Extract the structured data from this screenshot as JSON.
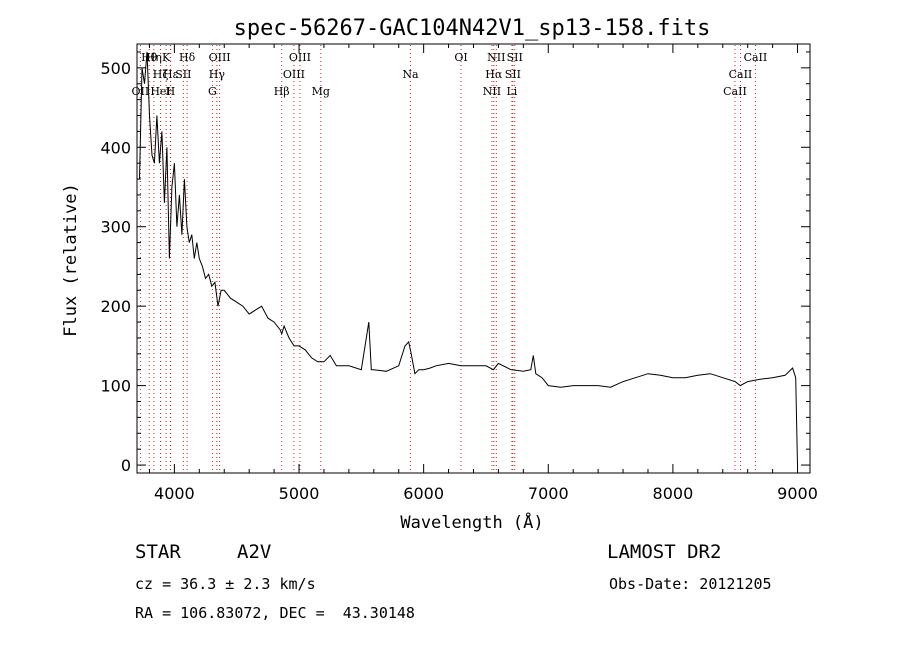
{
  "chart_data": {
    "type": "line",
    "title": "spec-56267-GAC104N42V1_sp13-158.fits",
    "xlabel": "Wavelength (Å)",
    "ylabel": "Flux (relative)",
    "xlim": [
      3700,
      9100
    ],
    "ylim": [
      -10,
      530
    ],
    "x_ticks": [
      4000,
      5000,
      6000,
      7000,
      8000,
      9000
    ],
    "y_ticks": [
      0,
      100,
      200,
      300,
      400,
      500
    ],
    "grid": false,
    "line_color": "#000000",
    "marker_color": "#cc2222",
    "series": [
      {
        "x": [
          3720,
          3740,
          3760,
          3780,
          3800,
          3820,
          3840,
          3860,
          3880,
          3900,
          3920,
          3940,
          3960,
          3980,
          4000,
          4020,
          4040,
          4060,
          4080,
          4100,
          4120,
          4140,
          4160,
          4180,
          4200,
          4225,
          4250,
          4275,
          4300,
          4325,
          4350,
          4375,
          4400,
          4450,
          4500,
          4550,
          4600,
          4650,
          4700,
          4750,
          4800,
          4850,
          4861,
          4880,
          4920,
          4960,
          5000,
          5050,
          5100,
          5150,
          5200,
          5250,
          5300,
          5400,
          5500,
          5560,
          5580,
          5600,
          5700,
          5800,
          5850,
          5880,
          5900,
          5930,
          5960,
          6000,
          6050,
          6100,
          6200,
          6300,
          6400,
          6500,
          6560,
          6600,
          6700,
          6800,
          6860,
          6880,
          6900,
          6950,
          7000,
          7100,
          7200,
          7300,
          7400,
          7500,
          7600,
          7700,
          7800,
          7900,
          8000,
          8100,
          8200,
          8300,
          8400,
          8500,
          8540,
          8600,
          8700,
          8800,
          8900,
          8960,
          8985,
          9000
        ],
        "y": [
          360,
          500,
          480,
          520,
          440,
          390,
          380,
          440,
          380,
          420,
          330,
          400,
          260,
          350,
          380,
          300,
          340,
          290,
          360,
          300,
          280,
          290,
          260,
          280,
          260,
          250,
          235,
          240,
          225,
          230,
          200,
          220,
          220,
          210,
          205,
          200,
          190,
          195,
          200,
          185,
          180,
          170,
          165,
          175,
          160,
          150,
          150,
          145,
          135,
          130,
          130,
          138,
          125,
          125,
          120,
          180,
          120,
          120,
          118,
          125,
          150,
          155,
          140,
          115,
          120,
          120,
          122,
          125,
          128,
          125,
          125,
          125,
          120,
          128,
          120,
          118,
          120,
          138,
          115,
          110,
          100,
          98,
          100,
          100,
          100,
          98,
          105,
          110,
          115,
          113,
          110,
          110,
          113,
          115,
          110,
          105,
          100,
          105,
          108,
          110,
          113,
          122,
          110,
          0
        ]
      }
    ],
    "lines": [
      {
        "label": "OII",
        "wavelength": 3727,
        "row": 2
      },
      {
        "label": "Hθ",
        "wavelength": 3798,
        "row": 0
      },
      {
        "label": "Hη",
        "wavelength": 3835,
        "row": 0
      },
      {
        "label": "Hζ",
        "wavelength": 3889,
        "row": 1
      },
      {
        "label": "HeI",
        "wavelength": 3889,
        "row": 2
      },
      {
        "label": "Hε",
        "wavelength": 3970,
        "row": 1
      },
      {
        "label": "K",
        "wavelength": 3934,
        "row": 0
      },
      {
        "label": "H",
        "wavelength": 3968,
        "row": 2
      },
      {
        "label": "SII",
        "wavelength": 4072,
        "row": 1
      },
      {
        "label": "Hδ",
        "wavelength": 4102,
        "row": 0
      },
      {
        "label": "OIII",
        "wavelength": 4363,
        "row": 0
      },
      {
        "label": "Hγ",
        "wavelength": 4341,
        "row": 1
      },
      {
        "label": "G",
        "wavelength": 4305,
        "row": 2
      },
      {
        "label": "Hβ",
        "wavelength": 4861,
        "row": 2
      },
      {
        "label": "OIII",
        "wavelength": 4959,
        "row": 1
      },
      {
        "label": "OIII",
        "wavelength": 5007,
        "row": 0
      },
      {
        "label": "Mg",
        "wavelength": 5175,
        "row": 2
      },
      {
        "label": "Na",
        "wavelength": 5894,
        "row": 1
      },
      {
        "label": "OI",
        "wavelength": 6300,
        "row": 0
      },
      {
        "label": "NII",
        "wavelength": 6548,
        "row": 2
      },
      {
        "label": "Hα",
        "wavelength": 6563,
        "row": 1
      },
      {
        "label": "NII",
        "wavelength": 6583,
        "row": 0
      },
      {
        "label": "SII",
        "wavelength": 6716,
        "row": 1
      },
      {
        "label": "SII",
        "wavelength": 6731,
        "row": 0
      },
      {
        "label": "Li",
        "wavelength": 6708,
        "row": 2
      },
      {
        "label": "CaII",
        "wavelength": 8498,
        "row": 2
      },
      {
        "label": "CaII",
        "wavelength": 8542,
        "row": 1
      },
      {
        "label": "CaII",
        "wavelength": 8662,
        "row": 0
      }
    ]
  },
  "info": {
    "object_class": "STAR",
    "subclass": "A2V",
    "survey": "LAMOST DR2",
    "redshift": "cz = 36.3 ± 2.3 km/s",
    "obs_date": "Obs-Date: 20121205",
    "coordinates": "RA = 106.83072, DEC =  43.30148"
  }
}
